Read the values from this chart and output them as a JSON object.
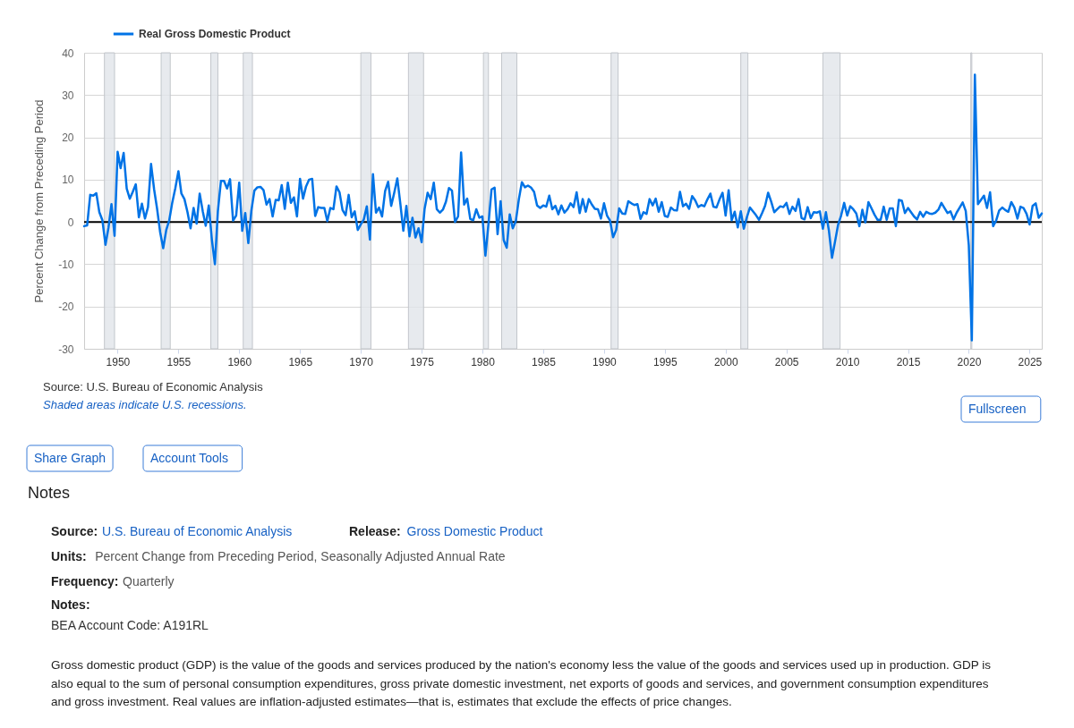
{
  "chart_data": {
    "type": "line",
    "ylabel": "Percent Change from Preceding Period",
    "x": [
      "1947-04",
      "1947-07",
      "1947-10",
      "1948-01",
      "1948-04",
      "1948-07",
      "1948-10",
      "1949-01",
      "1949-04",
      "1949-07",
      "1949-10",
      "1950-01",
      "1950-04",
      "1950-07",
      "1950-10",
      "1951-01",
      "1951-04",
      "1951-07",
      "1951-10",
      "1952-01",
      "1952-04",
      "1952-07",
      "1952-10",
      "1953-01",
      "1953-04",
      "1953-07",
      "1953-10",
      "1954-01",
      "1954-04",
      "1954-07",
      "1954-10",
      "1955-01",
      "1955-04",
      "1955-07",
      "1955-10",
      "1956-01",
      "1956-04",
      "1956-07",
      "1956-10",
      "1957-01",
      "1957-04",
      "1957-07",
      "1957-10",
      "1958-01",
      "1958-04",
      "1958-07",
      "1958-10",
      "1959-01",
      "1959-04",
      "1959-07",
      "1959-10",
      "1960-01",
      "1960-04",
      "1960-07",
      "1960-10",
      "1961-01",
      "1961-04",
      "1961-07",
      "1961-10",
      "1962-01",
      "1962-04",
      "1962-07",
      "1962-10",
      "1963-01",
      "1963-04",
      "1963-07",
      "1963-10",
      "1964-01",
      "1964-04",
      "1964-07",
      "1964-10",
      "1965-01",
      "1965-04",
      "1965-07",
      "1965-10",
      "1966-01",
      "1966-04",
      "1966-07",
      "1966-10",
      "1967-01",
      "1967-04",
      "1967-07",
      "1967-10",
      "1968-01",
      "1968-04",
      "1968-07",
      "1968-10",
      "1969-01",
      "1969-04",
      "1969-07",
      "1969-10",
      "1970-01",
      "1970-04",
      "1970-07",
      "1970-10",
      "1971-01",
      "1971-04",
      "1971-07",
      "1971-10",
      "1972-01",
      "1972-04",
      "1972-07",
      "1972-10",
      "1973-01",
      "1973-04",
      "1973-07",
      "1973-10",
      "1974-01",
      "1974-04",
      "1974-07",
      "1974-10",
      "1975-01",
      "1975-04",
      "1975-07",
      "1975-10",
      "1976-01",
      "1976-04",
      "1976-07",
      "1976-10",
      "1977-01",
      "1977-04",
      "1977-07",
      "1977-10",
      "1978-01",
      "1978-04",
      "1978-07",
      "1978-10",
      "1979-01",
      "1979-04",
      "1979-07",
      "1979-10",
      "1980-01",
      "1980-04",
      "1980-07",
      "1980-10",
      "1981-01",
      "1981-04",
      "1981-07",
      "1981-10",
      "1982-01",
      "1982-04",
      "1982-07",
      "1982-10",
      "1983-01",
      "1983-04",
      "1983-07",
      "1983-10",
      "1984-01",
      "1984-04",
      "1984-07",
      "1984-10",
      "1985-01",
      "1985-04",
      "1985-07",
      "1985-10",
      "1986-01",
      "1986-04",
      "1986-07",
      "1986-10",
      "1987-01",
      "1987-04",
      "1987-07",
      "1987-10",
      "1988-01",
      "1988-04",
      "1988-07",
      "1988-10",
      "1989-01",
      "1989-04",
      "1989-07",
      "1989-10",
      "1990-01",
      "1990-04",
      "1990-07",
      "1990-10",
      "1991-01",
      "1991-04",
      "1991-07",
      "1991-10",
      "1992-01",
      "1992-04",
      "1992-07",
      "1992-10",
      "1993-01",
      "1993-04",
      "1993-07",
      "1993-10",
      "1994-01",
      "1994-04",
      "1994-07",
      "1994-10",
      "1995-01",
      "1995-04",
      "1995-07",
      "1995-10",
      "1996-01",
      "1996-04",
      "1996-07",
      "1996-10",
      "1997-01",
      "1997-04",
      "1997-07",
      "1997-10",
      "1998-01",
      "1998-04",
      "1998-07",
      "1998-10",
      "1999-01",
      "1999-04",
      "1999-07",
      "1999-10",
      "2000-01",
      "2000-04",
      "2000-07",
      "2000-10",
      "2001-01",
      "2001-04",
      "2001-07",
      "2001-10",
      "2002-01",
      "2002-04",
      "2002-07",
      "2002-10",
      "2003-01",
      "2003-04",
      "2003-07",
      "2003-10",
      "2004-01",
      "2004-04",
      "2004-07",
      "2004-10",
      "2005-01",
      "2005-04",
      "2005-07",
      "2005-10",
      "2006-01",
      "2006-04",
      "2006-07",
      "2006-10",
      "2007-01",
      "2007-04",
      "2007-07",
      "2007-10",
      "2008-01",
      "2008-04",
      "2008-07",
      "2008-10",
      "2009-01",
      "2009-04",
      "2009-07",
      "2009-10",
      "2010-01",
      "2010-04",
      "2010-07",
      "2010-10",
      "2011-01",
      "2011-04",
      "2011-07",
      "2011-10",
      "2012-01",
      "2012-04",
      "2012-07",
      "2012-10",
      "2013-01",
      "2013-04",
      "2013-07",
      "2013-10",
      "2014-01",
      "2014-04",
      "2014-07",
      "2014-10",
      "2015-01",
      "2015-04",
      "2015-07",
      "2015-10",
      "2016-01",
      "2016-04",
      "2016-07",
      "2016-10",
      "2017-01",
      "2017-04",
      "2017-07",
      "2017-10",
      "2018-01",
      "2018-04",
      "2018-07",
      "2018-10",
      "2019-01",
      "2019-04",
      "2019-07",
      "2019-10",
      "2020-01",
      "2020-04",
      "2020-07",
      "2020-10",
      "2021-01",
      "2021-04",
      "2021-07",
      "2021-10",
      "2022-01",
      "2022-04",
      "2022-07",
      "2022-10",
      "2023-01",
      "2023-04",
      "2023-07",
      "2023-10",
      "2024-01",
      "2024-04",
      "2024-07",
      "2024-10",
      "2025-01",
      "2025-04",
      "2025-07",
      "2025-10",
      "2026-01"
    ],
    "series": [
      {
        "name": "Real Gross Domestic Product",
        "color": "#0073e6",
        "values": [
          -1.0,
          -0.8,
          6.4,
          6.2,
          6.8,
          2.3,
          0.4,
          -5.4,
          -1.4,
          4.2,
          -3.3,
          16.6,
          12.7,
          16.3,
          7.9,
          5.5,
          7.1,
          8.9,
          1.1,
          4.3,
          0.8,
          3.5,
          13.7,
          7.7,
          3.1,
          -2.4,
          -6.2,
          -1.9,
          0.4,
          4.6,
          8.0,
          12.0,
          6.7,
          5.4,
          2.3,
          -1.5,
          3.3,
          -0.4,
          6.7,
          2.5,
          -0.9,
          3.9,
          -4.1,
          -10.0,
          2.6,
          9.7,
          9.7,
          7.9,
          10.1,
          0.3,
          1.5,
          9.3,
          -2.1,
          2.1,
          -5.0,
          2.7,
          7.4,
          8.2,
          8.3,
          7.5,
          4.1,
          5.4,
          1.3,
          5.2,
          5.1,
          8.7,
          3.1,
          9.3,
          4.5,
          5.8,
          1.3,
          10.2,
          5.5,
          8.4,
          10.0,
          10.2,
          1.4,
          3.5,
          3.3,
          3.3,
          0.2,
          3.3,
          3.0,
          8.4,
          7.0,
          2.8,
          1.6,
          6.4,
          1.1,
          2.5,
          -1.9,
          -0.6,
          0.6,
          3.7,
          -4.2,
          11.3,
          2.2,
          3.4,
          1.3,
          7.3,
          9.5,
          3.8,
          6.9,
          10.3,
          4.4,
          -2.1,
          3.8,
          -3.4,
          1.0,
          -3.7,
          -1.5,
          -4.8,
          3.1,
          6.9,
          5.4,
          9.3,
          3.0,
          2.2,
          2.9,
          4.8,
          8.0,
          7.4,
          0.0,
          1.3,
          16.4,
          4.1,
          5.5,
          0.7,
          0.4,
          3.0,
          1.0,
          1.3,
          -8.0,
          -0.5,
          7.7,
          8.1,
          -2.9,
          4.9,
          -4.3,
          -6.1,
          1.8,
          -1.5,
          0.2,
          5.4,
          9.4,
          8.2,
          8.6,
          8.1,
          7.1,
          3.9,
          3.3,
          3.9,
          3.6,
          6.2,
          3.0,
          3.8,
          1.8,
          3.9,
          2.2,
          3.0,
          4.4,
          3.5,
          7.0,
          2.1,
          5.4,
          2.4,
          5.4,
          4.1,
          3.1,
          3.0,
          0.8,
          4.4,
          1.5,
          0.3,
          -3.6,
          -1.9,
          3.2,
          2.0,
          1.9,
          4.9,
          4.4,
          4.0,
          4.2,
          0.7,
          2.3,
          1.9,
          5.4,
          3.9,
          5.5,
          2.4,
          4.7,
          1.4,
          1.2,
          3.4,
          2.8,
          2.7,
          7.1,
          3.7,
          4.3,
          3.1,
          6.1,
          5.1,
          3.5,
          4.0,
          3.7,
          5.3,
          6.7,
          3.6,
          3.4,
          5.3,
          6.9,
          1.5,
          7.5,
          0.4,
          2.4,
          -1.3,
          2.5,
          -1.6,
          1.1,
          3.4,
          2.5,
          1.6,
          0.5,
          2.1,
          3.8,
          6.9,
          4.8,
          2.3,
          3.0,
          3.7,
          3.5,
          4.5,
          1.9,
          3.6,
          2.6,
          5.4,
          0.9,
          0.6,
          3.5,
          0.9,
          2.3,
          2.2,
          2.5,
          -1.6,
          2.3,
          -2.1,
          -8.5,
          -4.6,
          -0.7,
          1.5,
          4.5,
          1.5,
          3.7,
          3.0,
          2.0,
          -1.0,
          2.9,
          -0.1,
          4.7,
          3.2,
          1.7,
          0.5,
          0.5,
          3.6,
          0.5,
          3.2,
          3.2,
          -1.0,
          5.2,
          5.0,
          2.1,
          3.3,
          2.3,
          1.3,
          0.6,
          2.4,
          1.2,
          2.4,
          2.0,
          1.9,
          2.2,
          2.9,
          4.5,
          3.3,
          2.1,
          2.5,
          0.6,
          2.2,
          3.4,
          4.6,
          2.6,
          -5.5,
          -28.0,
          34.8,
          4.2,
          5.2,
          6.2,
          3.3,
          7.0,
          -1.0,
          0.3,
          2.7,
          3.4,
          2.8,
          2.4,
          4.7,
          3.4,
          0.8,
          3.6,
          3.3,
          1.9,
          -0.6,
          3.8,
          4.4,
          1.0,
          2.0
        ]
      }
    ],
    "xlim": [
      "1947-04",
      "2026-01"
    ],
    "xticks": [
      "1950",
      "1955",
      "1960",
      "1965",
      "1970",
      "1975",
      "1980",
      "1985",
      "1990",
      "1995",
      "2000",
      "2005",
      "2010",
      "2015",
      "2020",
      "2025"
    ],
    "ylim": [
      -30,
      40
    ],
    "yticks": [
      -30,
      -20,
      -10,
      0,
      10,
      20,
      30,
      40
    ],
    "grid": "y",
    "legend": "top left",
    "ref_lines": [
      {
        "axis": "y",
        "value": 0,
        "color": "#000000"
      }
    ],
    "bands": [
      {
        "axis": "x",
        "from": "1948-12",
        "to": "1949-10",
        "color": "#e1e5ea"
      },
      {
        "axis": "x",
        "from": "1953-08",
        "to": "1954-05",
        "color": "#e1e5ea"
      },
      {
        "axis": "x",
        "from": "1957-09",
        "to": "1958-04",
        "color": "#e1e5ea"
      },
      {
        "axis": "x",
        "from": "1960-05",
        "to": "1961-02",
        "color": "#e1e5ea"
      },
      {
        "axis": "x",
        "from": "1970-01",
        "to": "1970-11",
        "color": "#e1e5ea"
      },
      {
        "axis": "x",
        "from": "1973-12",
        "to": "1975-03",
        "color": "#e1e5ea"
      },
      {
        "axis": "x",
        "from": "1980-02",
        "to": "1980-07",
        "color": "#e1e5ea"
      },
      {
        "axis": "x",
        "from": "1981-08",
        "to": "1982-11",
        "color": "#e1e5ea"
      },
      {
        "axis": "x",
        "from": "1990-08",
        "to": "1991-03",
        "color": "#e1e5ea"
      },
      {
        "axis": "x",
        "from": "2001-04",
        "to": "2001-11",
        "color": "#e1e5ea"
      },
      {
        "axis": "x",
        "from": "2008-01",
        "to": "2009-06",
        "color": "#e1e5ea"
      },
      {
        "axis": "x",
        "from": "2020-03",
        "to": "2020-04",
        "color": "#e1e5ea"
      }
    ],
    "annotations": [
      "Source: U.S. Bureau of Economic Analysis",
      "Shaded areas indicate U.S. recessions.",
      "Fullscreen",
      "Share Graph",
      "Account Tools",
      "Notes",
      "Source: U.S. Bureau of Economic Analysis",
      "Release: Gross Domestic Product",
      "Units: Percent Change from Preceding Period, Seasonally Adjusted Annual Rate",
      "Frequency: Quarterly",
      "Notes:",
      "BEA Account Code: A191RL",
      "Gross domestic product (GDP) is the value of the goods and services produced by the nation's economy less the value of the goods and services used up in production. GDP is also equal to the sum of personal consumption expenditures, gross private domestic investment, net exports of goods and services, and government consumption expenditures and gross investment. Real values are inflation-adjusted estimates—that is, estimates that exclude the effects of price changes."
    ]
  }
}
